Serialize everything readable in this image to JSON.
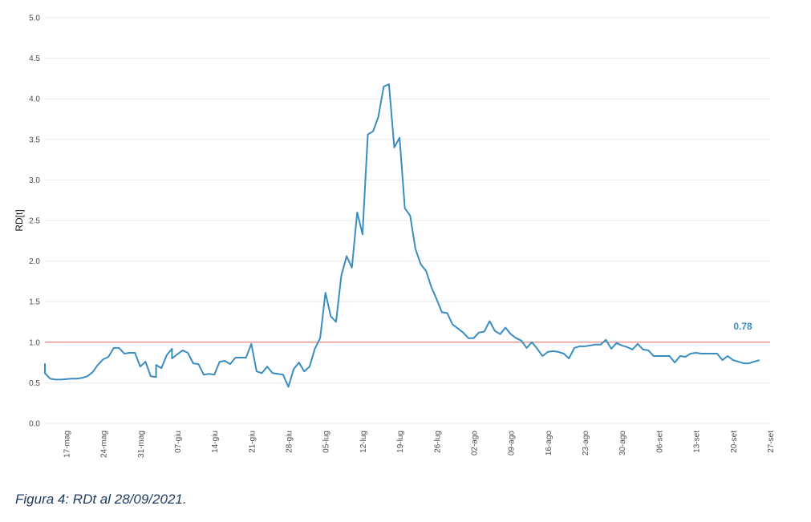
{
  "caption": "Figura 4: RDt al 28/09/2021.",
  "chart_data": {
    "type": "line",
    "ylabel": "RD[t]",
    "ylim": [
      0,
      5
    ],
    "yticks": [
      "0.0",
      "0.5",
      "1.0",
      "1.5",
      "2.0",
      "2.5",
      "3.0",
      "3.5",
      "4.0",
      "4.5",
      "5.0"
    ],
    "xlim": [
      "2021-05-13",
      "2021-09-27"
    ],
    "xticks": [
      {
        "date": "2021-05-17",
        "label": "17-mag"
      },
      {
        "date": "2021-05-24",
        "label": "24-mag"
      },
      {
        "date": "2021-05-31",
        "label": "31-mag"
      },
      {
        "date": "2021-06-07",
        "label": "07-giu"
      },
      {
        "date": "2021-06-14",
        "label": "14-giu"
      },
      {
        "date": "2021-06-21",
        "label": "21-giu"
      },
      {
        "date": "2021-06-28",
        "label": "28-giu"
      },
      {
        "date": "2021-07-05",
        "label": "05-lug"
      },
      {
        "date": "2021-07-12",
        "label": "12-lug"
      },
      {
        "date": "2021-07-19",
        "label": "19-lug"
      },
      {
        "date": "2021-07-26",
        "label": "26-lug"
      },
      {
        "date": "2021-08-02",
        "label": "02-ago"
      },
      {
        "date": "2021-08-09",
        "label": "09-ago"
      },
      {
        "date": "2021-08-16",
        "label": "16-ago"
      },
      {
        "date": "2021-08-23",
        "label": "23-ago"
      },
      {
        "date": "2021-08-30",
        "label": "30-ago"
      },
      {
        "date": "2021-09-06",
        "label": "06-set"
      },
      {
        "date": "2021-09-13",
        "label": "13-set"
      },
      {
        "date": "2021-09-20",
        "label": "20-set"
      },
      {
        "date": "2021-09-27",
        "label": "27-set"
      }
    ],
    "reference_line": {
      "y": 1.0,
      "color": "#e06666"
    },
    "last_value_label": "0.78",
    "grid": true,
    "colors": {
      "line": "#3a8dc0",
      "grid": "#ebebeb",
      "label": "#3a8dc0"
    },
    "series": [
      {
        "x": [
          "2021-05-13",
          "2021-05-13",
          "2021-05-14",
          "2021-05-15",
          "2021-05-16",
          "2021-05-18",
          "2021-05-19",
          "2021-05-20",
          "2021-05-21",
          "2021-05-22",
          "2021-05-23",
          "2021-05-24",
          "2021-05-25",
          "2021-05-26",
          "2021-05-27",
          "2021-05-28",
          "2021-05-29",
          "2021-05-30",
          "2021-05-31",
          "2021-06-01",
          "2021-06-02",
          "2021-06-03",
          "2021-06-03",
          "2021-06-04",
          "2021-06-05",
          "2021-06-06",
          "2021-06-06",
          "2021-06-08",
          "2021-06-09",
          "2021-06-10",
          "2021-06-11",
          "2021-06-12",
          "2021-06-13",
          "2021-06-14",
          "2021-06-15",
          "2021-06-16",
          "2021-06-17",
          "2021-06-18",
          "2021-06-19",
          "2021-06-20",
          "2021-06-21",
          "2021-06-22",
          "2021-06-23",
          "2021-06-24",
          "2021-06-25",
          "2021-06-26",
          "2021-06-27",
          "2021-06-28",
          "2021-06-29",
          "2021-06-30",
          "2021-07-01",
          "2021-07-02",
          "2021-07-03",
          "2021-07-04",
          "2021-07-05",
          "2021-07-06",
          "2021-07-07",
          "2021-07-08",
          "2021-07-09",
          "2021-07-10",
          "2021-07-11",
          "2021-07-12",
          "2021-07-13",
          "2021-07-14",
          "2021-07-15",
          "2021-07-16",
          "2021-07-17",
          "2021-07-18",
          "2021-07-19",
          "2021-07-20",
          "2021-07-21",
          "2021-07-22",
          "2021-07-23",
          "2021-07-24",
          "2021-07-25",
          "2021-07-26",
          "2021-07-27",
          "2021-07-28",
          "2021-07-29",
          "2021-07-30",
          "2021-07-31",
          "2021-08-01",
          "2021-08-02",
          "2021-08-03",
          "2021-08-04",
          "2021-08-05",
          "2021-08-06",
          "2021-08-07",
          "2021-08-08",
          "2021-08-09",
          "2021-08-10",
          "2021-08-11",
          "2021-08-12",
          "2021-08-13",
          "2021-08-14",
          "2021-08-15",
          "2021-08-16",
          "2021-08-17",
          "2021-08-18",
          "2021-08-19",
          "2021-08-20",
          "2021-08-21",
          "2021-08-22",
          "2021-08-23",
          "2021-08-24",
          "2021-08-25",
          "2021-08-26",
          "2021-08-27",
          "2021-08-28",
          "2021-08-29",
          "2021-08-30",
          "2021-08-31",
          "2021-09-01",
          "2021-09-02",
          "2021-09-03",
          "2021-09-04",
          "2021-09-05",
          "2021-09-06",
          "2021-09-07",
          "2021-09-08",
          "2021-09-09",
          "2021-09-10",
          "2021-09-11",
          "2021-09-12",
          "2021-09-13",
          "2021-09-14",
          "2021-09-15",
          "2021-09-16",
          "2021-09-17",
          "2021-09-18",
          "2021-09-19",
          "2021-09-20",
          "2021-09-21",
          "2021-09-22",
          "2021-09-23",
          "2021-09-24",
          "2021-09-25"
        ],
        "values": [
          0.74,
          0.62,
          0.55,
          0.54,
          0.54,
          0.55,
          0.55,
          0.56,
          0.58,
          0.63,
          0.72,
          0.79,
          0.82,
          0.93,
          0.93,
          0.86,
          0.87,
          0.87,
          0.7,
          0.76,
          0.58,
          0.57,
          0.72,
          0.68,
          0.84,
          0.92,
          0.8,
          0.9,
          0.87,
          0.74,
          0.73,
          0.6,
          0.61,
          0.6,
          0.76,
          0.77,
          0.73,
          0.81,
          0.81,
          0.81,
          0.98,
          0.64,
          0.62,
          0.7,
          0.62,
          0.61,
          0.6,
          0.45,
          0.67,
          0.75,
          0.64,
          0.7,
          0.92,
          1.05,
          1.61,
          1.32,
          1.25,
          1.82,
          2.06,
          1.92,
          2.6,
          2.33,
          3.56,
          3.6,
          3.78,
          4.15,
          4.18,
          3.4,
          3.52,
          2.65,
          2.56,
          2.15,
          1.96,
          1.88,
          1.68,
          1.53,
          1.37,
          1.36,
          1.22,
          1.17,
          1.12,
          1.05,
          1.05,
          1.12,
          1.13,
          1.26,
          1.14,
          1.1,
          1.18,
          1.1,
          1.05,
          1.02,
          0.93,
          1.0,
          0.92,
          0.83,
          0.88,
          0.89,
          0.88,
          0.86,
          0.8,
          0.93,
          0.95,
          0.95,
          0.96,
          0.97,
          0.97,
          1.03,
          0.92,
          0.99,
          0.96,
          0.94,
          0.91,
          0.98,
          0.91,
          0.9,
          0.83,
          0.83,
          0.83,
          0.83,
          0.75,
          0.83,
          0.82,
          0.86,
          0.87,
          0.86,
          0.86,
          0.86,
          0.86,
          0.78,
          0.83,
          0.78,
          0.76,
          0.74,
          0.74,
          0.76,
          0.78
        ]
      }
    ]
  }
}
